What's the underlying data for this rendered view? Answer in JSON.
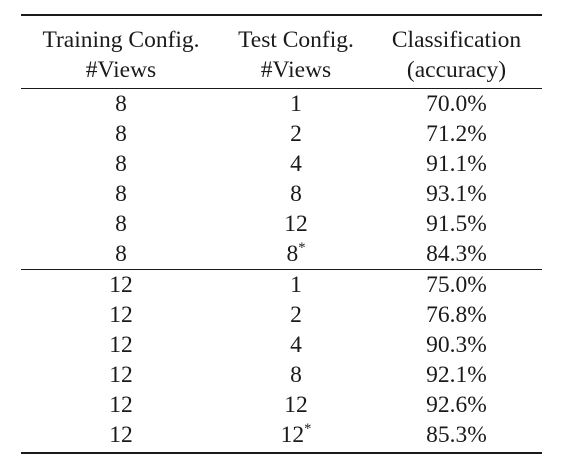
{
  "headers": {
    "col1": [
      "Training Config.",
      "#Views"
    ],
    "col2": [
      "Test Config.",
      "#Views"
    ],
    "col3": [
      "Classification",
      "(accuracy)"
    ]
  },
  "rows": [
    {
      "train": "8",
      "test": "1",
      "star": "",
      "acc": "70.0%"
    },
    {
      "train": "8",
      "test": "2",
      "star": "",
      "acc": "71.2%"
    },
    {
      "train": "8",
      "test": "4",
      "star": "",
      "acc": "91.1%"
    },
    {
      "train": "8",
      "test": "8",
      "star": "",
      "acc": "93.1%"
    },
    {
      "train": "8",
      "test": "12",
      "star": "",
      "acc": "91.5%"
    },
    {
      "train": "8",
      "test": "8",
      "star": "*",
      "acc": "84.3%"
    },
    {
      "train": "12",
      "test": "1",
      "star": "",
      "acc": "75.0%"
    },
    {
      "train": "12",
      "test": "2",
      "star": "",
      "acc": "76.8%"
    },
    {
      "train": "12",
      "test": "4",
      "star": "",
      "acc": "90.3%"
    },
    {
      "train": "12",
      "test": "8",
      "star": "",
      "acc": "92.1%"
    },
    {
      "train": "12",
      "test": "12",
      "star": "",
      "acc": "92.6%"
    },
    {
      "train": "12",
      "test": "12",
      "star": "*",
      "acc": "85.3%"
    }
  ]
}
